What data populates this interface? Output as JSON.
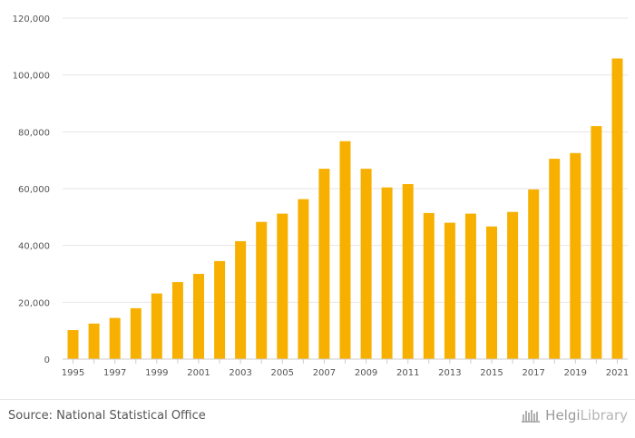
{
  "chart_data": {
    "type": "bar",
    "title": "",
    "xlabel": "",
    "ylabel": "",
    "ylim": [
      0,
      120000
    ],
    "grid": true,
    "categories": [
      "1995",
      "1996",
      "1997",
      "1998",
      "1999",
      "2000",
      "2001",
      "2002",
      "2003",
      "2004",
      "2005",
      "2006",
      "2007",
      "2008",
      "2009",
      "2010",
      "2011",
      "2012",
      "2013",
      "2014",
      "2015",
      "2016",
      "2017",
      "2018",
      "2019",
      "2020",
      "2021"
    ],
    "x_tick_labels": [
      "1995",
      "1997",
      "1999",
      "2001",
      "2003",
      "2005",
      "2007",
      "2009",
      "2011",
      "2013",
      "2015",
      "2017",
      "2019",
      "2021"
    ],
    "y_ticks": [
      0,
      20000,
      40000,
      60000,
      80000,
      100000,
      120000
    ],
    "y_tick_labels": [
      "0",
      "20,000",
      "40,000",
      "60,000",
      "80,000",
      "100,000",
      "120,000"
    ],
    "values": [
      10200,
      12500,
      14500,
      17900,
      23100,
      27100,
      30000,
      34500,
      41500,
      48300,
      51200,
      56300,
      67000,
      76700,
      67000,
      60400,
      61600,
      51400,
      48000,
      51200,
      46700,
      51800,
      59700,
      70500,
      72500,
      82000,
      105800
    ],
    "bar_color": "#f7b000"
  },
  "footer": {
    "source": "Source: National Statistical Office",
    "brand_part1": "Helgi",
    "brand_part2": "Library",
    "brand_icon": "helgi-library-logo-icon"
  },
  "colors": {
    "bar": "#f7b000",
    "grid": "#e6e6e6",
    "axis": "#cccccc",
    "text": "#555555"
  }
}
